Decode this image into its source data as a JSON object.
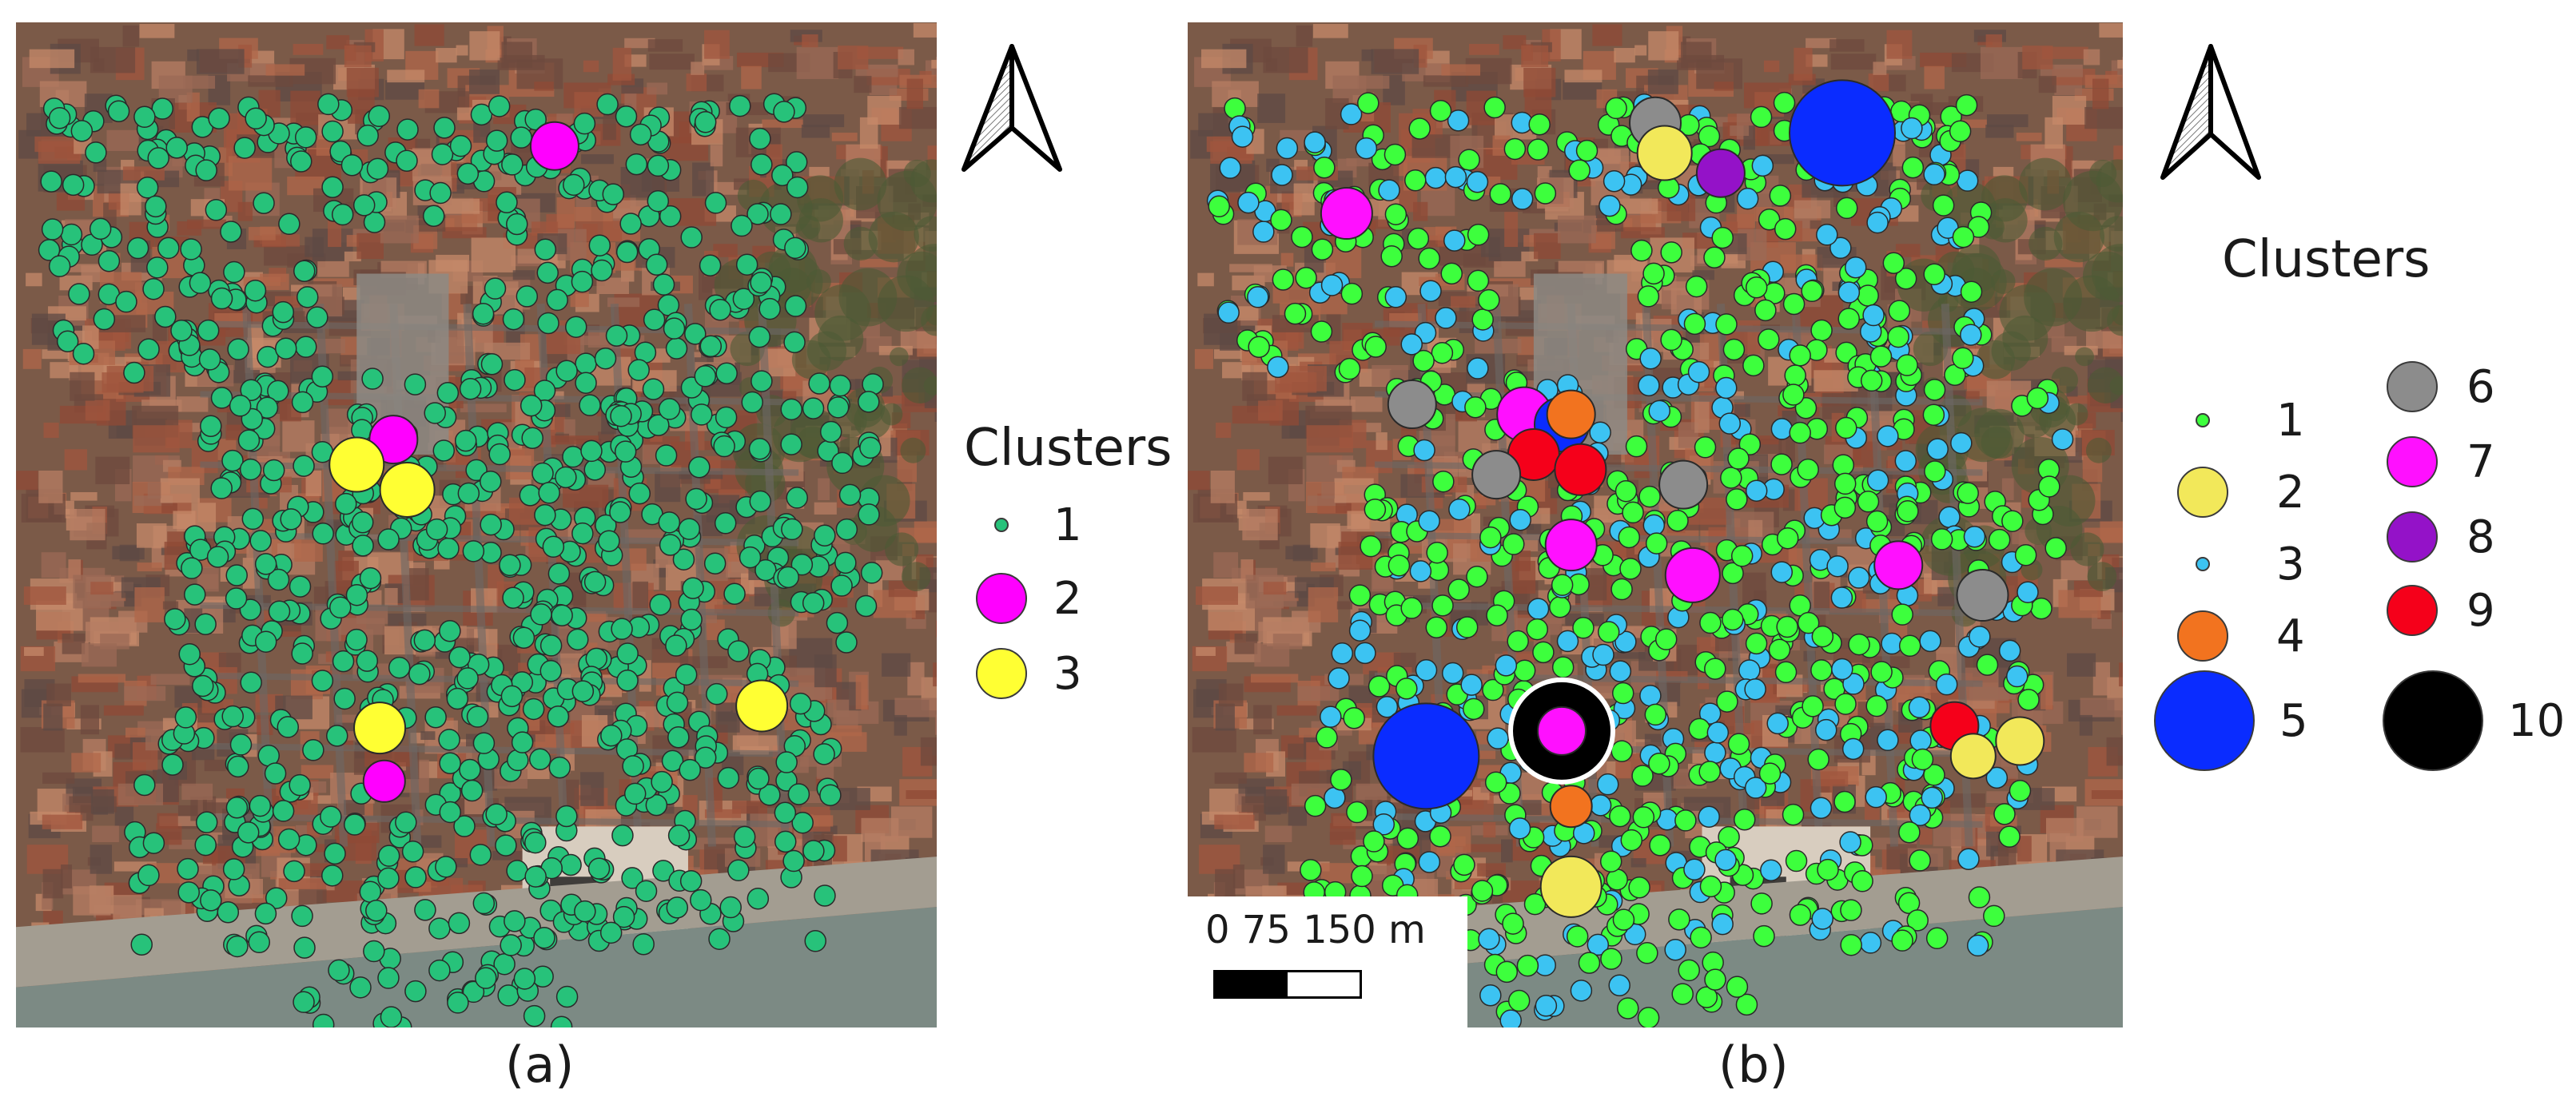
{
  "panels": {
    "a": {
      "caption": "(a)",
      "legend_title": "Clusters",
      "legend": [
        {
          "label": "1",
          "color": "#27c27a",
          "size": "small"
        },
        {
          "label": "2",
          "color": "#ff00ff",
          "size": "medium"
        },
        {
          "label": "3",
          "color": "#ffff33",
          "size": "medium"
        }
      ]
    },
    "b": {
      "caption": "(b)",
      "legend_title": "Clusters",
      "legend": [
        {
          "label": "1",
          "color": "#3dff3d",
          "size": "small"
        },
        {
          "label": "2",
          "color": "#f2e85a",
          "size": "medium"
        },
        {
          "label": "3",
          "color": "#3cc3f2",
          "size": "small"
        },
        {
          "label": "4",
          "color": "#f2731f",
          "size": "medium"
        },
        {
          "label": "5",
          "color": "#0a2cff",
          "size": "large"
        },
        {
          "label": "6",
          "color": "#8c8c8c",
          "size": "medium"
        },
        {
          "label": "7",
          "color": "#ff10ff",
          "size": "medium"
        },
        {
          "label": "8",
          "color": "#9412c8",
          "size": "medium"
        },
        {
          "label": "9",
          "color": "#f5001a",
          "size": "medium"
        },
        {
          "label": "10",
          "color": "#000000",
          "size": "large"
        }
      ],
      "scale_bar": {
        "labels": "0    75 150  m"
      }
    }
  },
  "icons": {
    "north_arrow": "north-arrow-icon"
  }
}
